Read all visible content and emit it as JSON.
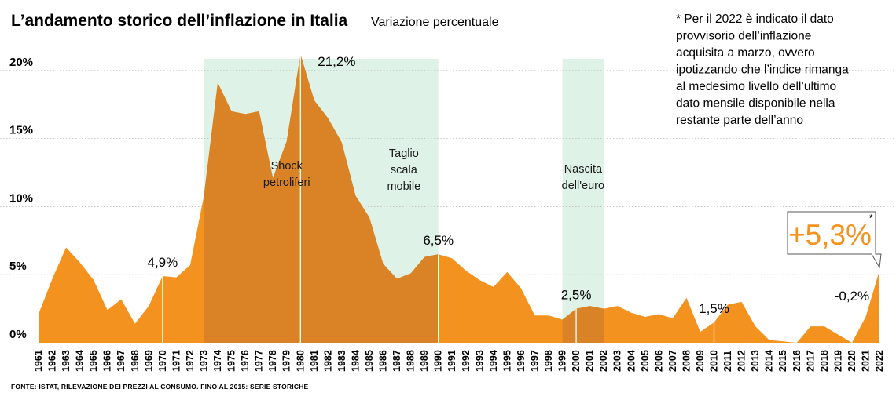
{
  "colors": {
    "area": "#f4921f",
    "band": "#def2e8",
    "band_overlap": "#d98326",
    "grid": "#bdbdbd",
    "callout_text": "#f4921f",
    "marker": "#ffffff"
  },
  "chart_data": {
    "type": "area",
    "title": "L’andamento storico dell’inflazione in Italia",
    "subtitle": "Variazione percentuale",
    "ylabel": "",
    "xlabel": "",
    "ylim": [
      0,
      21.2
    ],
    "yticks": [
      {
        "value": 0,
        "label": "0%"
      },
      {
        "value": 5,
        "label": "5%"
      },
      {
        "value": 10,
        "label": "10%"
      },
      {
        "value": 15,
        "label": "15%"
      },
      {
        "value": 20,
        "label": "20%"
      }
    ],
    "grid": true,
    "x": [
      1961,
      1962,
      1963,
      1964,
      1965,
      1966,
      1967,
      1968,
      1969,
      1970,
      1971,
      1972,
      1973,
      1974,
      1975,
      1976,
      1977,
      1978,
      1979,
      1980,
      1981,
      1982,
      1983,
      1984,
      1985,
      1986,
      1987,
      1988,
      1989,
      1990,
      1991,
      1992,
      1993,
      1994,
      1995,
      1996,
      1997,
      1998,
      1999,
      2000,
      2001,
      2002,
      2003,
      2004,
      2005,
      2006,
      2007,
      2008,
      2009,
      2010,
      2011,
      2012,
      2013,
      2014,
      2015,
      2016,
      2017,
      2018,
      2019,
      2020,
      2021,
      2022
    ],
    "series": [
      {
        "values": [
          2.1,
          4.7,
          7.0,
          5.9,
          4.6,
          2.4,
          3.2,
          1.4,
          2.7,
          4.9,
          4.8,
          5.7,
          10.8,
          19.1,
          17.0,
          16.8,
          17.0,
          12.1,
          14.8,
          21.2,
          17.8,
          16.5,
          14.7,
          10.8,
          9.2,
          5.8,
          4.7,
          5.1,
          6.3,
          6.5,
          6.2,
          5.3,
          4.6,
          4.1,
          5.2,
          4.0,
          2.0,
          2.0,
          1.7,
          2.5,
          2.7,
          2.5,
          2.7,
          2.2,
          1.9,
          2.1,
          1.8,
          3.3,
          0.8,
          1.5,
          2.8,
          3.0,
          1.2,
          0.2,
          0.1,
          -0.1,
          1.2,
          1.2,
          0.6,
          -0.2,
          1.9,
          5.3
        ]
      }
    ],
    "bands": [
      {
        "from": 1973,
        "to": 1985,
        "label_lines": [
          "Shock",
          "petroliferi"
        ]
      },
      {
        "from": 1985,
        "to": 1990,
        "label_lines": [
          "Taglio",
          "scala",
          "mobile"
        ]
      },
      {
        "from": 1999,
        "to": 2002,
        "label_lines": [
          "Nascita",
          "dell'euro"
        ]
      }
    ],
    "annotations": [
      {
        "year": 1970,
        "label": "4,9%"
      },
      {
        "year": 1980,
        "label": "21,2%"
      },
      {
        "year": 1990,
        "label": "6,5%"
      },
      {
        "year": 2000,
        "label": "2,5%"
      },
      {
        "year": 2010,
        "label": "1,5%"
      },
      {
        "year": 2020,
        "label": "-0,2%"
      }
    ],
    "callout": {
      "year": 2022,
      "label": "+5,3%",
      "mark": "*"
    },
    "note": "* Per il 2022 è indicato il dato provvisorio dell’inflazione acquisita a marzo, ovvero ipotizzando che l’indice rimanga al medesimo livello dell’ultimo dato mensile disponibile nella restante parte dell’anno",
    "note_lines": [
      "* Per il 2022 è indicato il dato",
      "provvisorio dell’inflazione",
      "acquisita a marzo, ovvero",
      "ipotizzando che l’indice rimanga",
      "al medesimo livello dell’ultimo",
      "dato mensile disponibile nella",
      "restante parte dell’anno"
    ],
    "source": "FONTE: ISTAT, RILEVAZIONE DEI PREZZI AL CONSUMO. FINO AL 2015: SERIE STORICHE"
  }
}
